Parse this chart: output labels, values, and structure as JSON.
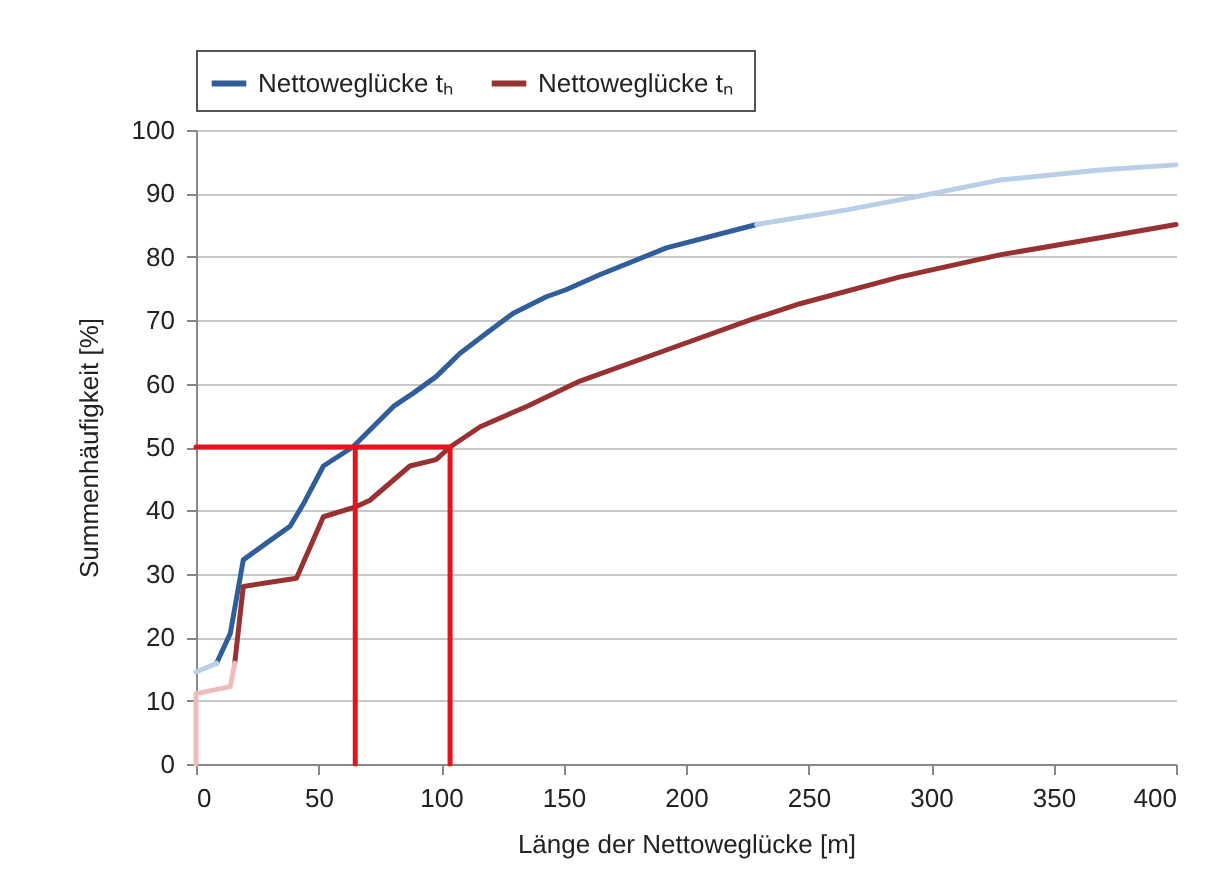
{
  "chart_data": {
    "type": "line",
    "xlabel": "Länge der Nettoweglücke [m]",
    "ylabel": "Summenhäufigkeit [%]",
    "xlim": [
      0,
      400
    ],
    "xticks": [
      0,
      50,
      100,
      150,
      200,
      250,
      300,
      350,
      400
    ],
    "ylim": [
      0,
      100
    ],
    "yticks": [
      0,
      10,
      20,
      30,
      40,
      50,
      60,
      70,
      80,
      90,
      100
    ],
    "grid": "y",
    "legend": "top",
    "line_style": "solid",
    "marker": "none",
    "series": [
      {
        "name": "Nettoweglücke tₕ",
        "color": "#2f5e9a",
        "x": [
          8.4,
          14,
          19.3,
          28.6,
          38.4,
          43.8,
          52,
          64,
          80.6,
          88.7,
          98,
          107.8,
          118.4,
          129.5,
          143,
          151,
          165,
          192,
          228.8
        ],
        "values": [
          15.9,
          20.6,
          32.2,
          34.8,
          37.5,
          41,
          47,
          50,
          56.4,
          58.5,
          61.1,
          64.8,
          67.9,
          71.1,
          73.7,
          74.8,
          77.2,
          81.4,
          85.1
        ]
      },
      {
        "color": "#b9cfe8",
        "x": [
          0,
          8.4
        ],
        "values": [
          14.5,
          15.9
        ]
      },
      {
        "color": "#b9cfe8",
        "x": [
          228.8,
          265.6,
          301,
          328,
          369,
          400
        ],
        "values": [
          85.1,
          87.4,
          90,
          92.1,
          93.7,
          94.5
        ]
      },
      {
        "name": "Nettoweglücke  tₙ",
        "color": "#983232",
        "x": [
          15.8,
          19.3,
          41,
          52,
          65.5,
          71,
          87.3,
          98,
          103.7,
          116,
          135,
          156.7,
          192,
          227.4,
          246.5,
          287,
          328,
          369,
          400
        ],
        "values": [
          15.9,
          28,
          29.3,
          39,
          40.6,
          41.6,
          47,
          48,
          50,
          53.2,
          56.4,
          60.4,
          65.3,
          70.2,
          72.6,
          76.8,
          80.3,
          83,
          85.1
        ]
      },
      {
        "color": "#efbcbc",
        "x": [
          0,
          0,
          14,
          15.8
        ],
        "values": [
          0,
          11.1,
          12.2,
          15.9
        ]
      },
      {
        "color": "#e3141c",
        "x": [
          0,
          103.7,
          103.7
        ],
        "values": [
          50,
          50,
          0
        ]
      },
      {
        "color": "#e3141c",
        "x": [
          65,
          65
        ],
        "values": [
          50,
          0
        ]
      }
    ]
  }
}
